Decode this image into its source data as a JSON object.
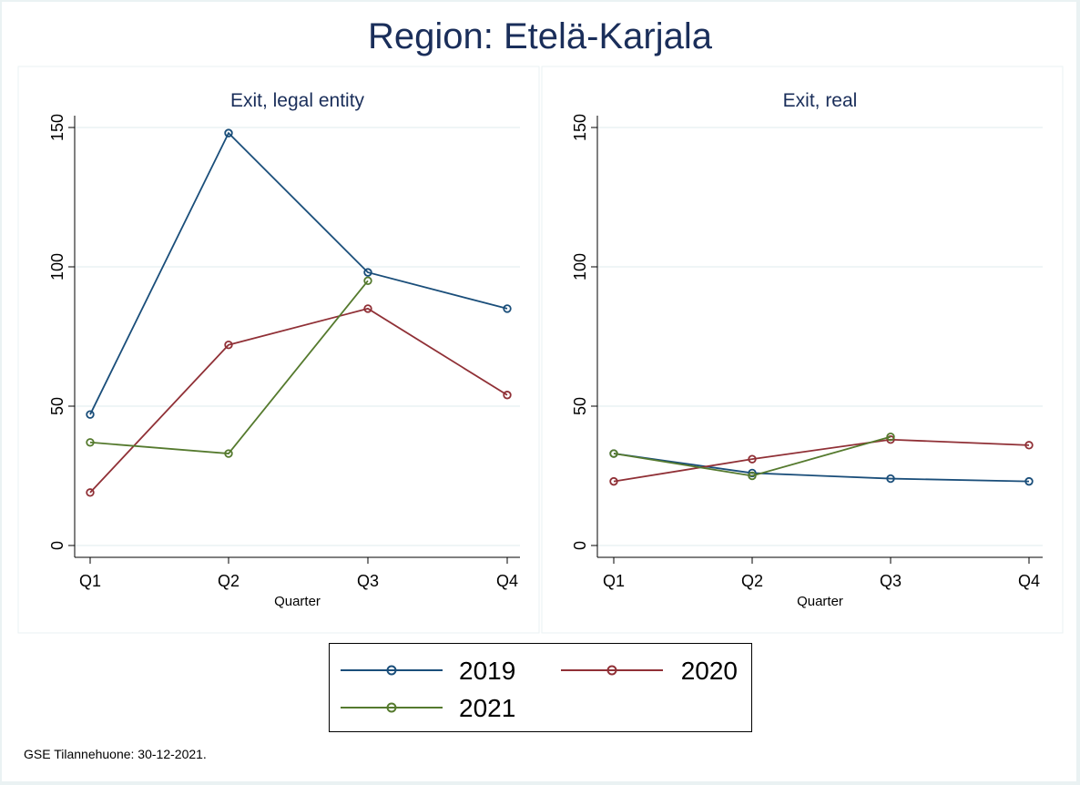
{
  "title": "Region: Etelä-Karjala",
  "footer": "GSE Tilannehuone: 30-12-2021.",
  "colors": {
    "2019": "#1a4e7a",
    "2020": "#903036",
    "2021": "#557a2e",
    "title": "#1a2e5a"
  },
  "legend": [
    {
      "label": "2019",
      "color": "#1a4e7a"
    },
    {
      "label": "2020",
      "color": "#903036"
    },
    {
      "label": "2021",
      "color": "#557a2e"
    }
  ],
  "chart_data": [
    {
      "type": "line",
      "title": "Exit, legal entity",
      "xlabel": "Quarter",
      "ylabel": "",
      "categories": [
        "Q1",
        "Q2",
        "Q3",
        "Q4"
      ],
      "yticks": [
        "0",
        "50",
        "100",
        "150"
      ],
      "ylim": [
        0,
        150
      ],
      "grid": true,
      "series": [
        {
          "name": "2019",
          "values": [
            47,
            148,
            98,
            85
          ]
        },
        {
          "name": "2020",
          "values": [
            19,
            72,
            85,
            54
          ]
        },
        {
          "name": "2021",
          "values": [
            37,
            33,
            95,
            null
          ]
        }
      ]
    },
    {
      "type": "line",
      "title": "Exit, real",
      "xlabel": "Quarter",
      "ylabel": "",
      "categories": [
        "Q1",
        "Q2",
        "Q3",
        "Q4"
      ],
      "yticks": [
        "0",
        "50",
        "100",
        "150"
      ],
      "ylim": [
        0,
        150
      ],
      "grid": true,
      "series": [
        {
          "name": "2019",
          "values": [
            33,
            26,
            24,
            23
          ]
        },
        {
          "name": "2020",
          "values": [
            23,
            31,
            38,
            36
          ]
        },
        {
          "name": "2021",
          "values": [
            33,
            25,
            39,
            null
          ]
        }
      ]
    }
  ]
}
